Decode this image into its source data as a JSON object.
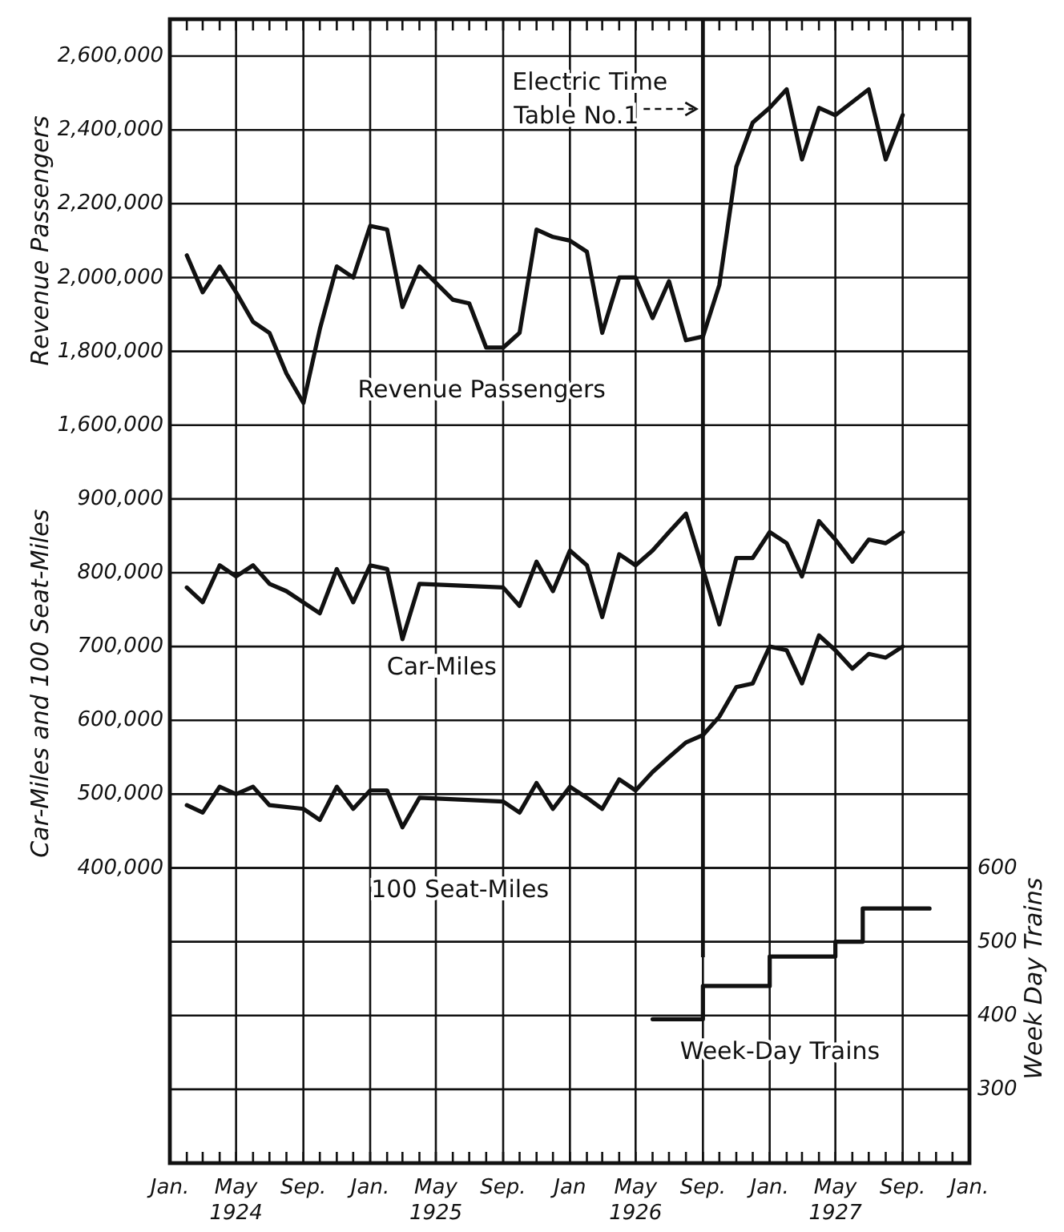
{
  "chart_data": {
    "type": "line",
    "ylabel": "Revenue Passengers",
    "y3label": "Car-Miles and 100 Seat-Miles",
    "y2label": "Week Day Trains",
    "xlim": [
      "1924-01",
      "1928-01"
    ],
    "xticks": [
      {
        "value": "1924-01",
        "label": "Jan."
      },
      {
        "value": "1924-02",
        "label": null
      },
      {
        "value": "1924-03",
        "label": null
      },
      {
        "value": "1924-04",
        "label": null
      },
      {
        "value": "1924-05",
        "label": "May\n1924"
      },
      {
        "value": "1924-06",
        "label": null
      },
      {
        "value": "1924-07",
        "label": null
      },
      {
        "value": "1924-08",
        "label": null
      },
      {
        "value": "1924-09",
        "label": "Sep."
      },
      {
        "value": "1924-10",
        "label": null
      },
      {
        "value": "1924-11",
        "label": null
      },
      {
        "value": "1924-12",
        "label": null
      },
      {
        "value": "1925-01",
        "label": "Jan."
      },
      {
        "value": "1925-02",
        "label": null
      },
      {
        "value": "1925-03",
        "label": null
      },
      {
        "value": "1925-04",
        "label": null
      },
      {
        "value": "1925-05",
        "label": "May\n1925"
      },
      {
        "value": "1925-06",
        "label": null
      },
      {
        "value": "1925-07",
        "label": null
      },
      {
        "value": "1925-08",
        "label": null
      },
      {
        "value": "1925-09",
        "label": "Sep."
      },
      {
        "value": "1925-10",
        "label": null
      },
      {
        "value": "1925-11",
        "label": null
      },
      {
        "value": "1925-12",
        "label": null
      },
      {
        "value": "1926-01",
        "label": "Jan"
      },
      {
        "value": "1926-02",
        "label": null
      },
      {
        "value": "1926-03",
        "label": null
      },
      {
        "value": "1926-04",
        "label": null
      },
      {
        "value": "1926-05",
        "label": "May\n1926"
      },
      {
        "value": "1926-06",
        "label": null
      },
      {
        "value": "1926-07",
        "label": null
      },
      {
        "value": "1926-08",
        "label": null
      },
      {
        "value": "1926-09",
        "label": "Sep."
      },
      {
        "value": "1926-10",
        "label": null
      },
      {
        "value": "1926-11",
        "label": null
      },
      {
        "value": "1926-12",
        "label": null
      },
      {
        "value": "1927-01",
        "label": "Jan."
      },
      {
        "value": "1927-02",
        "label": null
      },
      {
        "value": "1927-03",
        "label": null
      },
      {
        "value": "1927-04",
        "label": null
      },
      {
        "value": "1927-05",
        "label": "May\n1927"
      },
      {
        "value": "1927-06",
        "label": null
      },
      {
        "value": "1927-07",
        "label": null
      },
      {
        "value": "1927-08",
        "label": null
      },
      {
        "value": "1927-09",
        "label": "Sep."
      },
      {
        "value": "1927-10",
        "label": null
      },
      {
        "value": "1927-11",
        "label": null
      },
      {
        "value": "1927-12",
        "label": null
      },
      {
        "value": "1928-01",
        "label": "Jan."
      }
    ],
    "ylim": [
      -400000,
      2700000
    ],
    "yticks": [
      {
        "value": 1600000,
        "label": "1,600,000"
      },
      {
        "value": 1800000,
        "label": "1,800,000"
      },
      {
        "value": 2000000,
        "label": "2,000,000"
      },
      {
        "value": 2200000,
        "label": "2,200,000"
      },
      {
        "value": 2400000,
        "label": "2,400,000"
      },
      {
        "value": 2600000,
        "label": "2,600,000"
      }
    ],
    "y3lim": [
      0,
      1550000
    ],
    "y3ticks": [
      {
        "value": 400000,
        "label": "400,000"
      },
      {
        "value": 500000,
        "label": "500,000"
      },
      {
        "value": 600000,
        "label": "600,000"
      },
      {
        "value": 700000,
        "label": "700,000"
      },
      {
        "value": 800000,
        "label": "800,000"
      },
      {
        "value": 900000,
        "label": "900,000"
      }
    ],
    "y2lim": [
      200,
      1750
    ],
    "y2ticks": [
      300,
      400,
      500,
      600
    ],
    "grid": true,
    "marker": "none",
    "line_style": "solid",
    "ref_lines": [
      {
        "axis": "x",
        "value": "1926-09",
        "label": "Electric Time Table No.1",
        "color": "#111111"
      }
    ],
    "series": [
      {
        "name": "Revenue Passengers",
        "color": "#111111",
        "x": [
          "1924-02",
          "1924-03",
          "1924-04",
          "1924-05",
          "1924-06",
          "1924-07",
          "1924-08",
          "1924-09",
          "1924-10",
          "1924-11",
          "1924-12",
          "1925-01",
          "1925-02",
          "1925-03",
          "1925-04",
          "1925-06",
          "1925-07",
          "1925-08",
          "1925-09",
          "1925-10",
          "1925-11",
          "1925-12",
          "1926-01",
          "1926-02",
          "1926-03",
          "1926-04",
          "1926-05",
          "1926-06",
          "1926-07",
          "1926-08",
          "1926-09",
          "1926-10",
          "1926-11",
          "1926-12",
          "1927-01",
          "1927-02",
          "1927-03",
          "1927-04",
          "1927-05",
          "1927-07",
          "1927-08",
          "1927-09"
        ],
        "values": [
          2060000,
          1960000,
          2030000,
          1960000,
          1880000,
          1850000,
          1740000,
          1660000,
          1860000,
          2030000,
          2000000,
          2140000,
          2130000,
          1920000,
          2030000,
          1940000,
          1930000,
          1810000,
          1810000,
          1850000,
          2130000,
          2110000,
          2100000,
          2070000,
          1850000,
          2000000,
          2000000,
          1890000,
          1990000,
          1830000,
          1840000,
          1980000,
          2300000,
          2420000,
          2460000,
          2510000,
          2320000,
          2460000,
          2440000,
          2510000,
          2320000,
          2440000
        ]
      },
      {
        "name": "Car-Miles",
        "color": "#111111",
        "axis": "y3",
        "x": [
          "1924-02",
          "1924-03",
          "1924-04",
          "1924-05",
          "1924-06",
          "1924-07",
          "1924-08",
          "1924-10",
          "1924-11",
          "1924-12",
          "1925-01",
          "1925-02",
          "1925-03",
          "1925-04",
          "1925-09",
          "1925-10",
          "1925-11",
          "1925-12",
          "1926-01",
          "1926-02",
          "1926-03",
          "1926-04",
          "1926-05",
          "1926-06",
          "1926-07",
          "1926-08",
          "1926-09",
          "1926-10",
          "1926-11",
          "1926-12",
          "1927-01",
          "1927-02",
          "1927-03",
          "1927-04",
          "1927-05",
          "1927-06",
          "1927-07",
          "1927-08",
          "1927-09"
        ],
        "values": [
          780000,
          760000,
          810000,
          795000,
          810000,
          785000,
          775000,
          745000,
          805000,
          760000,
          810000,
          805000,
          710000,
          785000,
          780000,
          755000,
          815000,
          775000,
          830000,
          810000,
          740000,
          825000,
          810000,
          830000,
          855000,
          880000,
          805000,
          730000,
          820000,
          820000,
          855000,
          840000,
          795000,
          870000,
          845000,
          815000,
          845000,
          840000,
          855000
        ]
      },
      {
        "name": "100 Seat-Miles",
        "color": "#111111",
        "axis": "y3",
        "x": [
          "1924-02",
          "1924-03",
          "1924-04",
          "1924-05",
          "1924-06",
          "1924-07",
          "1924-09",
          "1924-10",
          "1924-11",
          "1924-12",
          "1925-01",
          "1925-02",
          "1925-03",
          "1925-04",
          "1925-09",
          "1925-10",
          "1925-11",
          "1925-12",
          "1926-01",
          "1926-02",
          "1926-03",
          "1926-04",
          "1926-05",
          "1926-06",
          "1926-07",
          "1926-08",
          "1926-09",
          "1926-10",
          "1926-11",
          "1926-12",
          "1927-01",
          "1927-02",
          "1927-03",
          "1927-04",
          "1927-05",
          "1927-06",
          "1927-07",
          "1927-08",
          "1927-09"
        ],
        "values": [
          485000,
          475000,
          510000,
          500000,
          510000,
          485000,
          480000,
          465000,
          510000,
          480000,
          505000,
          505000,
          455000,
          495000,
          490000,
          475000,
          515000,
          480000,
          510000,
          495000,
          480000,
          520000,
          505000,
          530000,
          550000,
          570000,
          580000,
          605000,
          645000,
          650000,
          700000,
          695000,
          650000,
          715000,
          695000,
          670000,
          690000,
          685000,
          700000
        ]
      },
      {
        "name": "Week-Day Trains",
        "color": "#111111",
        "axis": "y2",
        "type": "step",
        "x": [
          "1926-06",
          "1926-09",
          "1927-01",
          "1927-05",
          "1927-06-20",
          "1927-10-20"
        ],
        "values": [
          395,
          440,
          480,
          500,
          545,
          545
        ]
      }
    ]
  }
}
